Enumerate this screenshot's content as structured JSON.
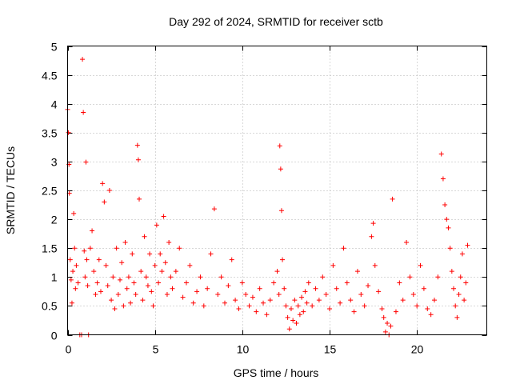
{
  "chart_data": {
    "type": "scatter",
    "title": "Day 292 of 2024, SRMTID for receiver sctb",
    "xlabel": "GPS time / hours",
    "ylabel": "SRMTID / TECUs",
    "xlim": [
      0,
      24
    ],
    "ylim": [
      0,
      5
    ],
    "x_ticks": [
      0,
      5,
      10,
      15,
      20
    ],
    "x_tick_labels": [
      "0",
      "5",
      "10",
      "15",
      "20"
    ],
    "y_ticks": [
      0,
      0.5,
      1,
      1.5,
      2,
      2.5,
      3,
      3.5,
      4,
      4.5,
      5
    ],
    "y_tick_labels": [
      "0",
      "0.5",
      "1",
      "1.5",
      "2",
      "2.5",
      "3",
      "3.5",
      "4",
      "4.5",
      "5"
    ],
    "grid": true,
    "marker": "+",
    "color": "#ff0000",
    "series": [
      {
        "name": "SRMTID",
        "x": [
          0.0,
          0.05,
          0.08,
          0.1,
          0.15,
          0.2,
          0.25,
          0.3,
          0.35,
          0.4,
          0.45,
          0.5,
          0.6,
          0.7,
          0.8,
          0.85,
          0.9,
          0.95,
          1.0,
          1.05,
          1.1,
          1.15,
          1.2,
          1.3,
          1.4,
          1.5,
          1.6,
          1.7,
          1.8,
          1.9,
          2.0,
          2.1,
          2.2,
          2.3,
          2.4,
          2.5,
          2.6,
          2.7,
          2.8,
          2.9,
          3.0,
          3.1,
          3.2,
          3.3,
          3.4,
          3.5,
          3.6,
          3.7,
          3.8,
          3.9,
          4.0,
          4.05,
          4.1,
          4.2,
          4.3,
          4.4,
          4.5,
          4.6,
          4.7,
          4.8,
          4.9,
          5.0,
          5.1,
          5.2,
          5.3,
          5.4,
          5.5,
          5.6,
          5.7,
          5.8,
          5.9,
          6.0,
          6.2,
          6.4,
          6.6,
          6.8,
          7.0,
          7.2,
          7.4,
          7.6,
          7.8,
          8.0,
          8.2,
          8.4,
          8.6,
          8.8,
          9.0,
          9.2,
          9.4,
          9.6,
          9.8,
          10.0,
          10.2,
          10.4,
          10.6,
          10.8,
          11.0,
          11.2,
          11.4,
          11.6,
          11.8,
          12.0,
          12.1,
          12.15,
          12.2,
          12.25,
          12.3,
          12.4,
          12.5,
          12.6,
          12.7,
          12.8,
          12.9,
          13.0,
          13.1,
          13.2,
          13.3,
          13.4,
          13.5,
          13.6,
          13.7,
          13.8,
          14.0,
          14.2,
          14.4,
          14.6,
          14.8,
          15.0,
          15.2,
          15.4,
          15.6,
          15.8,
          16.0,
          16.2,
          16.4,
          16.6,
          16.8,
          17.0,
          17.2,
          17.4,
          17.5,
          17.6,
          17.8,
          18.0,
          18.1,
          18.2,
          18.3,
          18.4,
          18.5,
          18.6,
          18.8,
          19.0,
          19.2,
          19.4,
          19.6,
          19.8,
          20.0,
          20.2,
          20.4,
          20.6,
          20.8,
          21.0,
          21.2,
          21.4,
          21.5,
          21.6,
          21.7,
          21.8,
          21.9,
          22.0,
          22.1,
          22.2,
          22.3,
          22.4,
          22.5,
          22.6,
          22.7,
          22.8,
          22.9
        ],
        "y": [
          3.9,
          3.5,
          2.95,
          2.45,
          1.3,
          0.95,
          0.55,
          1.1,
          2.1,
          1.5,
          0.8,
          1.2,
          0.9,
          0.0,
          0.0,
          4.77,
          3.85,
          1.45,
          1.0,
          2.99,
          1.3,
          0.85,
          0.0,
          1.5,
          1.8,
          1.1,
          0.7,
          0.9,
          1.3,
          0.75,
          2.62,
          2.3,
          1.2,
          0.85,
          2.5,
          0.6,
          1.0,
          0.45,
          1.5,
          0.7,
          0.95,
          1.25,
          0.5,
          1.6,
          0.8,
          1.0,
          0.55,
          1.4,
          0.9,
          0.7,
          3.28,
          3.03,
          2.35,
          1.1,
          0.6,
          1.7,
          1.0,
          0.85,
          1.4,
          0.75,
          0.5,
          1.2,
          1.9,
          0.9,
          1.4,
          1.1,
          2.05,
          1.25,
          0.7,
          1.6,
          1.0,
          0.8,
          1.1,
          1.5,
          0.65,
          0.9,
          1.2,
          0.55,
          0.75,
          1.0,
          0.5,
          0.8,
          1.4,
          2.18,
          0.7,
          1.0,
          0.55,
          0.85,
          1.3,
          0.6,
          0.45,
          0.9,
          0.7,
          0.5,
          0.65,
          0.4,
          0.8,
          0.55,
          0.35,
          0.6,
          0.9,
          1.1,
          0.7,
          3.27,
          2.87,
          2.15,
          1.3,
          0.8,
          0.5,
          0.3,
          0.1,
          0.45,
          0.25,
          0.6,
          0.2,
          0.5,
          0.35,
          0.65,
          0.4,
          0.75,
          0.55,
          0.9,
          0.5,
          0.8,
          0.6,
          1.0,
          0.7,
          0.45,
          1.2,
          0.8,
          0.55,
          1.5,
          0.9,
          0.6,
          0.4,
          1.1,
          0.7,
          0.5,
          0.85,
          1.7,
          1.93,
          1.2,
          0.75,
          0.45,
          0.3,
          0.05,
          0.2,
          0.0,
          0.15,
          2.35,
          0.4,
          0.9,
          0.6,
          1.6,
          1.0,
          0.7,
          0.5,
          1.2,
          0.8,
          0.45,
          0.35,
          0.6,
          1.0,
          3.13,
          2.7,
          2.25,
          2.0,
          1.85,
          1.5,
          1.1,
          0.8,
          0.5,
          0.3,
          0.7,
          1.0,
          1.4,
          0.6,
          0.9,
          1.55
        ]
      }
    ]
  }
}
